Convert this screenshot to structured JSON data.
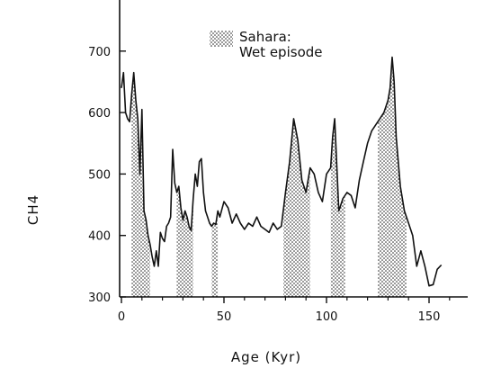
{
  "chart_data": {
    "type": "line",
    "xlabel": "Age (Kyr)",
    "ylabel": "CH4",
    "xlim": [
      0,
      160
    ],
    "ylim": [
      300,
      760
    ],
    "x_ticks": [
      0,
      50,
      100,
      150
    ],
    "y_ticks": [
      300,
      400,
      500,
      600,
      700
    ],
    "legend": {
      "entries": [
        {
          "label_line1": "Sahara:",
          "label_line2": "Wet episode",
          "style": "stippled"
        }
      ]
    },
    "shaded_intervals": [
      [
        5,
        14
      ],
      [
        27,
        35
      ],
      [
        44,
        47
      ],
      [
        79,
        92
      ],
      [
        102,
        109
      ],
      [
        125,
        139
      ]
    ],
    "series": [
      {
        "x": [
          0,
          1,
          2,
          3,
          4,
          5,
          6,
          7,
          8,
          9,
          10,
          11,
          12,
          13,
          14,
          15,
          16,
          17,
          18,
          19,
          20,
          21,
          22,
          23,
          24,
          25,
          26,
          27,
          28,
          29,
          30,
          31,
          32,
          33,
          34,
          35,
          36,
          37,
          38,
          39,
          40,
          41,
          42,
          43,
          44,
          45,
          46,
          47,
          48,
          50,
          52,
          54,
          56,
          58,
          60,
          62,
          64,
          66,
          68,
          70,
          72,
          74,
          76,
          78,
          80,
          82,
          84,
          86,
          88,
          90,
          92,
          94,
          96,
          98,
          100,
          102,
          103,
          104,
          106,
          108,
          110,
          112,
          114,
          116,
          118,
          120,
          122,
          124,
          126,
          128,
          130,
          131,
          132,
          133,
          134,
          136,
          138,
          140,
          142,
          144,
          146,
          148,
          150,
          152,
          154,
          156
        ],
        "y": [
          640,
          665,
          600,
          590,
          585,
          630,
          665,
          620,
          590,
          500,
          605,
          440,
          425,
          400,
          385,
          365,
          350,
          375,
          350,
          405,
          395,
          390,
          415,
          420,
          430,
          540,
          485,
          470,
          480,
          445,
          425,
          440,
          430,
          415,
          408,
          460,
          500,
          480,
          520,
          525,
          470,
          440,
          430,
          420,
          415,
          420,
          418,
          440,
          430,
          455,
          445,
          420,
          435,
          420,
          410,
          420,
          415,
          430,
          415,
          410,
          405,
          420,
          410,
          415,
          470,
          520,
          590,
          555,
          490,
          470,
          510,
          500,
          470,
          455,
          500,
          510,
          560,
          590,
          440,
          460,
          470,
          465,
          445,
          490,
          520,
          550,
          570,
          580,
          590,
          600,
          620,
          640,
          690,
          650,
          560,
          480,
          440,
          420,
          400,
          350,
          375,
          350,
          318,
          320,
          345,
          352
        ]
      }
    ]
  }
}
